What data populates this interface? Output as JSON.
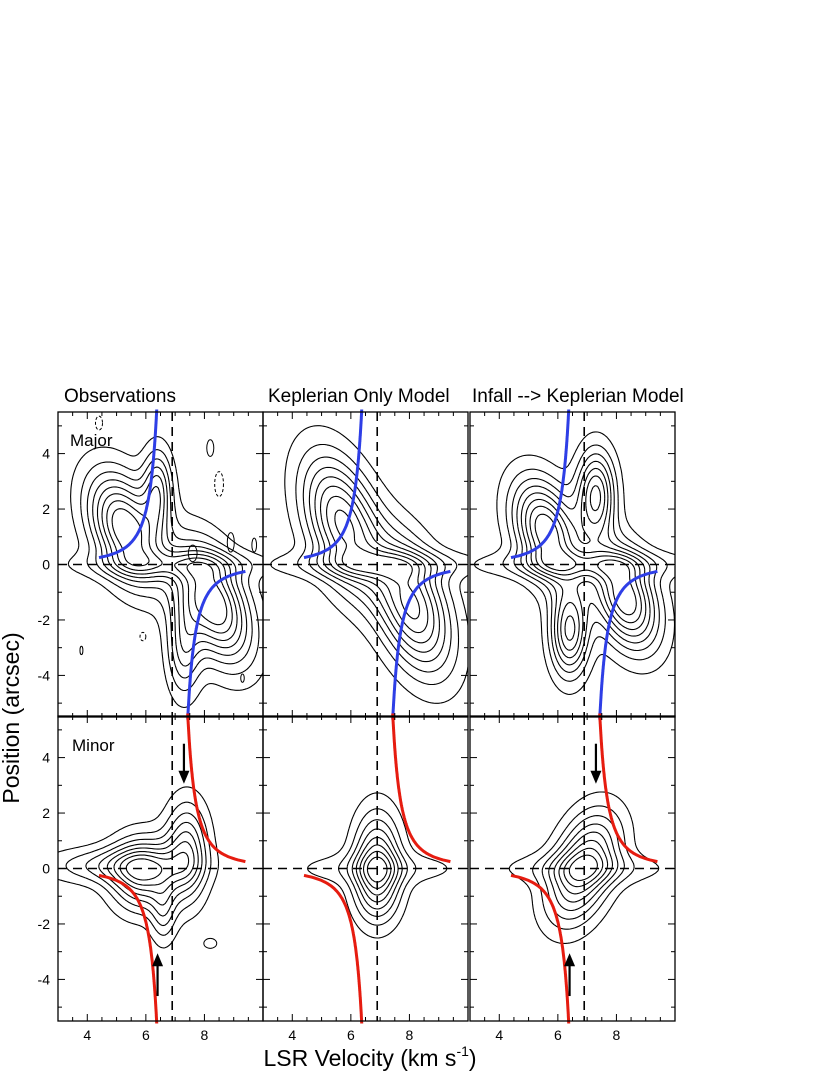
{
  "chart_data": {
    "type": "contour",
    "panel_titles": [
      "Observations",
      "Keplerian Only Model",
      "Infall --> Keplerian Model"
    ],
    "row_labels": [
      "Major",
      "Minor"
    ],
    "xlabel": "LSR Velocity (km s",
    "xlabel_sup": "-1",
    "xlabel_end": ")",
    "ylabel": "Position (arcsec)",
    "xlim": [
      3.0,
      10.0
    ],
    "ylim": [
      -5.5,
      5.5
    ],
    "xticks": [
      4,
      6,
      8
    ],
    "yticks": [
      -4,
      -2,
      0,
      2,
      4
    ],
    "systemic_velocity": 6.9,
    "keplerian_curve_color": "#2e3ee6",
    "infall_curve_color": "#e61c10",
    "contour_color": "#000000",
    "panels": [
      {
        "row": "Major",
        "col": "Observations",
        "peaks": [
          {
            "v": 5.3,
            "p": 1.3,
            "sv": 0.75,
            "sp": 1.4,
            "a": 1.0,
            "rot": -0.35
          },
          {
            "v": 8.3,
            "p": -1.4,
            "sv": 0.75,
            "sp": 1.5,
            "a": 1.0,
            "rot": -0.35
          },
          {
            "v": 6.4,
            "p": 2.7,
            "sv": 0.35,
            "sp": 1.0,
            "a": 0.55,
            "rot": 0
          },
          {
            "v": 7.3,
            "p": -3.0,
            "sv": 0.4,
            "sp": 1.2,
            "a": 0.45,
            "rot": 0
          },
          {
            "v": 6.9,
            "p": 0.0,
            "sv": 2.2,
            "sp": 0.35,
            "a": 0.3,
            "rot": 0
          }
        ],
        "extras": "obs-major"
      },
      {
        "row": "Major",
        "col": "Keplerian Only Model",
        "peaks": [
          {
            "v": 5.7,
            "p": 1.5,
            "sv": 0.8,
            "sp": 1.7,
            "a": 1.0,
            "rot": -0.3
          },
          {
            "v": 8.1,
            "p": -1.5,
            "sv": 0.8,
            "sp": 1.7,
            "a": 1.0,
            "rot": -0.3
          },
          {
            "v": 6.9,
            "p": 0.0,
            "sv": 2.3,
            "sp": 0.35,
            "a": 0.35,
            "rot": 0
          }
        ]
      },
      {
        "row": "Major",
        "col": "Infall --> Keplerian Model",
        "peaks": [
          {
            "v": 5.6,
            "p": 1.2,
            "sv": 0.7,
            "sp": 1.3,
            "a": 1.0,
            "rot": -0.3
          },
          {
            "v": 8.3,
            "p": -1.2,
            "sv": 0.7,
            "sp": 1.3,
            "a": 1.0,
            "rot": -0.3
          },
          {
            "v": 7.3,
            "p": 2.5,
            "sv": 0.45,
            "sp": 1.1,
            "a": 0.8,
            "rot": 0
          },
          {
            "v": 6.4,
            "p": -2.4,
            "sv": 0.45,
            "sp": 1.1,
            "a": 0.8,
            "rot": 0
          },
          {
            "v": 6.9,
            "p": 0.0,
            "sv": 2.3,
            "sp": 0.35,
            "a": 0.35,
            "rot": 0
          }
        ]
      },
      {
        "row": "Minor",
        "col": "Observations",
        "peaks": [
          {
            "v": 5.9,
            "p": -0.2,
            "sv": 0.75,
            "sp": 0.9,
            "a": 1.0,
            "rot": 0
          },
          {
            "v": 7.4,
            "p": 0.6,
            "sv": 0.5,
            "sp": 1.2,
            "a": 0.85,
            "rot": 0
          },
          {
            "v": 5.0,
            "p": 0.1,
            "sv": 1.6,
            "sp": 0.45,
            "a": 0.5,
            "rot": 0
          },
          {
            "v": 6.6,
            "p": -1.6,
            "sv": 0.3,
            "sp": 0.8,
            "a": 0.4,
            "rot": 0
          }
        ],
        "extras": "obs-minor"
      },
      {
        "row": "Minor",
        "col": "Keplerian Only Model",
        "peaks": [
          {
            "v": 6.9,
            "p": 0.5,
            "sv": 0.55,
            "sp": 1.2,
            "a": 1.0,
            "rot": 0
          },
          {
            "v": 6.9,
            "p": -0.6,
            "sv": 0.55,
            "sp": 1.0,
            "a": 0.85,
            "rot": 0
          },
          {
            "v": 6.9,
            "p": 0.0,
            "sv": 1.9,
            "sp": 0.4,
            "a": 0.4,
            "rot": 0
          }
        ]
      },
      {
        "row": "Minor",
        "col": "Infall --> Keplerian Model",
        "peaks": [
          {
            "v": 7.2,
            "p": 0.7,
            "sv": 0.7,
            "sp": 1.1,
            "a": 1.0,
            "rot": 0.25
          },
          {
            "v": 6.5,
            "p": -0.7,
            "sv": 0.7,
            "sp": 1.1,
            "a": 0.9,
            "rot": 0.25
          },
          {
            "v": 6.9,
            "p": 0.0,
            "sv": 1.9,
            "sp": 0.4,
            "a": 0.4,
            "rot": 0
          }
        ]
      }
    ],
    "arrows": [
      {
        "panel": "Minor-Observations",
        "v": 7.3,
        "from": 4.5,
        "to": 3.2,
        "direction": "down"
      },
      {
        "panel": "Minor-Observations",
        "v": 6.4,
        "from": -4.6,
        "to": -3.2,
        "direction": "up"
      },
      {
        "panel": "Minor-Infall",
        "v": 7.3,
        "from": 4.5,
        "to": 3.2,
        "direction": "down"
      },
      {
        "panel": "Minor-Infall",
        "v": 6.4,
        "from": -4.6,
        "to": -3.2,
        "direction": "up"
      }
    ]
  }
}
